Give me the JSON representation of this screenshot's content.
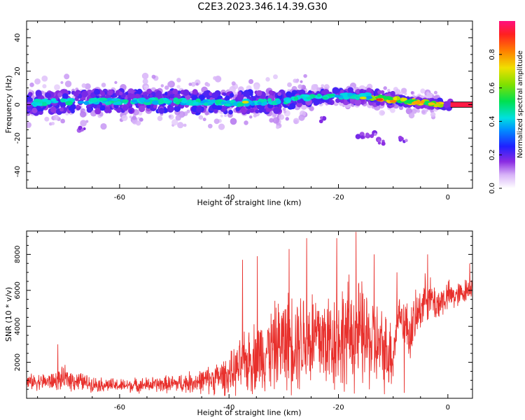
{
  "title": "C2E3.2023.346.14.39.G30",
  "colors": {
    "snr_line": "#e8302c",
    "axis": "#000000"
  },
  "chart_data": [
    {
      "type": "heatmap",
      "xlabel": "Height of straight line (km)",
      "ylabel": "Frequency (Hz)",
      "xlim": [
        -77,
        4.5
      ],
      "ylim": [
        -50,
        50
      ],
      "xticks": [
        -60,
        -40,
        -20,
        0
      ],
      "yticks": [
        -40,
        -20,
        0,
        20,
        40
      ],
      "colorbar": {
        "label": "Normalized spectral amplitude",
        "range": [
          0,
          1
        ],
        "ticks": [
          0.0,
          0.2,
          0.4,
          0.6,
          0.8
        ]
      },
      "ridge": {
        "x": [
          -77,
          -70,
          -60,
          -50,
          -40,
          -30,
          -27,
          -20,
          -15,
          -10,
          -5,
          0,
          4.5
        ],
        "y": [
          1,
          2,
          2,
          2,
          1,
          2,
          4,
          5,
          5,
          3,
          1,
          0,
          0
        ]
      },
      "features": [
        {
          "x": -16,
          "y": -18
        },
        {
          "x": -14,
          "y": -18
        },
        {
          "x": -12,
          "y": -22
        },
        {
          "x": -23,
          "y": -9
        },
        {
          "x": -8,
          "y": -21
        },
        {
          "x": -67,
          "y": -15
        }
      ]
    },
    {
      "type": "line",
      "xlabel": "Height of straight line (km)",
      "ylabel": "SNR (10 * v/v)",
      "xlim": [
        -77,
        4.5
      ],
      "ylim": [
        0,
        9300
      ],
      "xticks": [
        -60,
        -40,
        -20,
        0
      ],
      "yticks": [
        2000,
        4000,
        6000,
        8000
      ],
      "envelope": {
        "x": [
          -77,
          -72,
          -70,
          -65,
          -60,
          -55,
          -50,
          -45,
          -42,
          -40,
          -38,
          -36,
          -34,
          -32,
          -30,
          -28,
          -26,
          -24,
          -22,
          -20,
          -18,
          -16,
          -14,
          -12,
          -10,
          -9,
          -8,
          -7,
          -5,
          -4,
          -2,
          0,
          2,
          4.5
        ],
        "center": [
          900,
          950,
          1100,
          800,
          700,
          750,
          800,
          950,
          1150,
          1300,
          1700,
          2200,
          2500,
          2800,
          3100,
          3300,
          3300,
          3400,
          3200,
          3300,
          3600,
          3500,
          3100,
          2700,
          2500,
          4800,
          4300,
          3600,
          5000,
          5700,
          5200,
          5700,
          5700,
          6300
        ],
        "amplitude": [
          500,
          600,
          800,
          500,
          450,
          500,
          600,
          800,
          1100,
          1300,
          1800,
          2300,
          2500,
          2800,
          3200,
          3400,
          3500,
          3600,
          3400,
          3600,
          3700,
          3600,
          3200,
          2700,
          2400,
          1200,
          1600,
          1900,
          1500,
          1500,
          1300,
          1000,
          900,
          700
        ]
      },
      "peaks": [
        {
          "x": -71.3,
          "y": 3000
        },
        {
          "x": -37.5,
          "y": 7700
        },
        {
          "x": -34.8,
          "y": 7900
        },
        {
          "x": -29.0,
          "y": 8300
        },
        {
          "x": -25.8,
          "y": 8900
        },
        {
          "x": -20.3,
          "y": 8900
        },
        {
          "x": -16.8,
          "y": 9250
        },
        {
          "x": -13.5,
          "y": 8000
        },
        {
          "x": -9.3,
          "y": 7000
        },
        {
          "x": -3.7,
          "y": 8000
        },
        {
          "x": 4.0,
          "y": 7500
        },
        {
          "x": -8.0,
          "y": 300
        }
      ]
    }
  ]
}
